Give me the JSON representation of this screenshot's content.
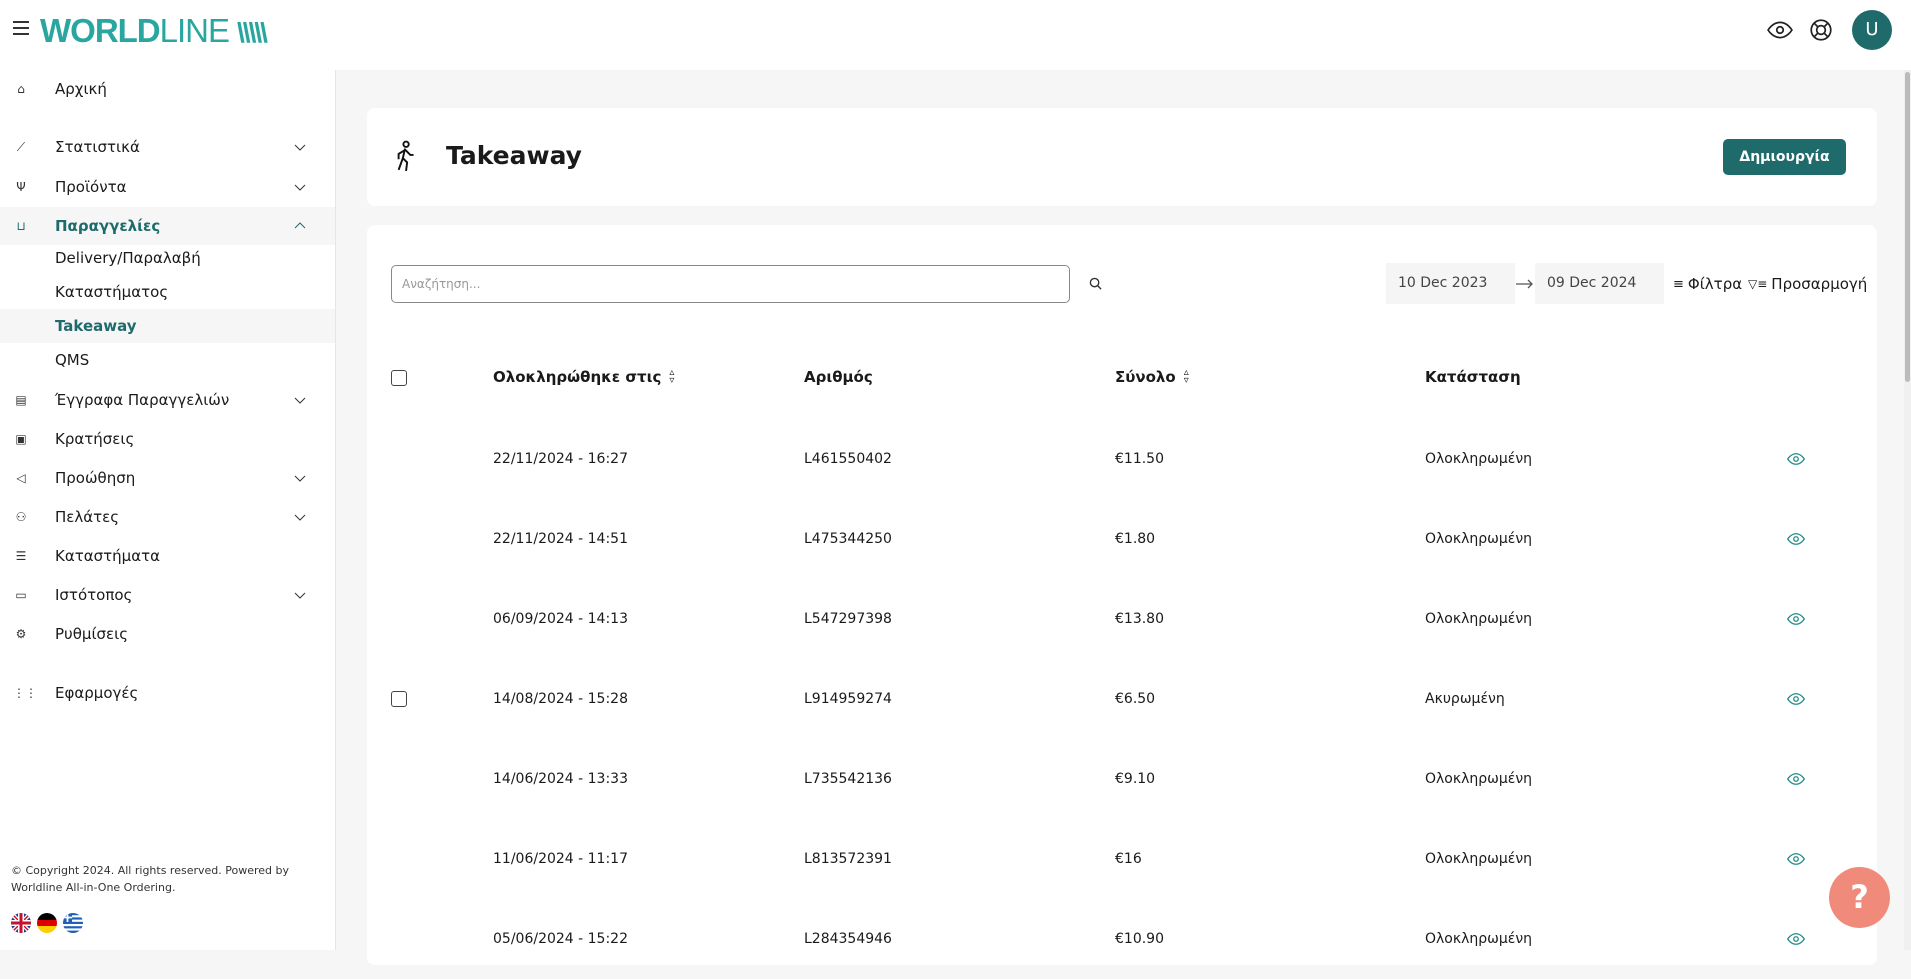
{
  "header": {
    "logo": "WORLDLINE",
    "avatar_initial": "U",
    "accent": "#1f6b6b"
  },
  "sidebar": {
    "items": [
      {
        "label": "Αρχική",
        "icon": "home-icon"
      },
      {
        "label": "Στατιστικά",
        "icon": "chart-icon"
      },
      {
        "label": "Προϊόντα",
        "icon": "cutlery-icon"
      },
      {
        "label": "Παραγγελίες",
        "icon": "bag-icon"
      },
      {
        "label": "Delivery/Παραλαβή"
      },
      {
        "label": "Καταστήματος"
      },
      {
        "label": "Takeaway"
      },
      {
        "label": "QMS"
      },
      {
        "label": "Έγγραφα Παραγγελιών",
        "icon": "document-icon"
      },
      {
        "label": "Κρατήσεις",
        "icon": "calendar-icon"
      },
      {
        "label": "Προώθηση",
        "icon": "megaphone-icon"
      },
      {
        "label": "Πελάτες",
        "icon": "users-icon"
      },
      {
        "label": "Καταστήματα",
        "icon": "store-icon"
      },
      {
        "label": "Ιστότοπος",
        "icon": "browser-icon"
      },
      {
        "label": "Ρυθμίσεις",
        "icon": "gears-icon"
      },
      {
        "label": "Εφαρμογές",
        "icon": "grid-icon"
      }
    ],
    "copyright": "© Copyright 2024. All rights reserved. Powered by Worldline All-in-One Ordering."
  },
  "page": {
    "title": "Takeaway",
    "create_label": "Δημιουργία"
  },
  "toolbar": {
    "search_placeholder": "Αναζήτηση...",
    "date_from": "10 Dec 2023",
    "date_to": "09 Dec 2024",
    "filters_label": "Φίλτρα",
    "customize_label": "Προσαρμογή"
  },
  "table": {
    "headers": {
      "completed": "Ολοκληρώθηκε στις",
      "number": "Αριθμός",
      "total": "Σύνολο",
      "status": "Κατάσταση"
    },
    "rows": [
      {
        "completed": "22/11/2024 - 16:27",
        "number": "L461550402",
        "total": "€11.50",
        "status": "Ολοκληρωμένη"
      },
      {
        "completed": "22/11/2024 - 14:51",
        "number": "L475344250",
        "total": "€1.80",
        "status": "Ολοκληρωμένη"
      },
      {
        "completed": "06/09/2024 - 14:13",
        "number": "L547297398",
        "total": "€13.80",
        "status": "Ολοκληρωμένη"
      },
      {
        "completed": "14/08/2024 - 15:28",
        "number": "L914959274",
        "total": "€6.50",
        "status": "Ακυρωμένη"
      },
      {
        "completed": "14/06/2024 - 13:33",
        "number": "L735542136",
        "total": "€9.10",
        "status": "Ολοκληρωμένη"
      },
      {
        "completed": "11/06/2024 - 11:17",
        "number": "L813572391",
        "total": "€16",
        "status": "Ολοκληρωμένη"
      },
      {
        "completed": "05/06/2024 - 15:22",
        "number": "L284354946",
        "total": "€10.90",
        "status": "Ολοκληρωμένη"
      }
    ]
  },
  "help": {
    "label": "?"
  }
}
